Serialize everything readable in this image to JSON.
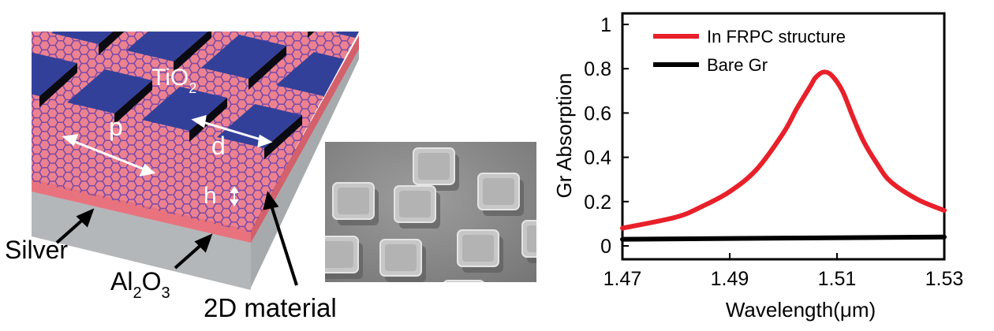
{
  "schematic": {
    "labels": {
      "tio2": "TiO",
      "tio2_sub": "2",
      "period": "p",
      "size": "d",
      "height": "h",
      "silver": "Silver",
      "al2o3_a": "Al",
      "al2o3_sub1": "2",
      "al2o3_o": "O",
      "al2o3_sub2": "3",
      "material": "2D material"
    },
    "colors": {
      "tio2": "#33409a",
      "tio2_shadow": "#0a0a12",
      "al2o3": "#e8737e",
      "silver": "#b4b7ba",
      "graphene": "#7c4aa8"
    }
  },
  "sem": {
    "colors": {
      "background": "#8f8f8f",
      "pillar": "#b9b9b9"
    }
  },
  "chart_data": {
    "type": "line",
    "xlabel": "Wavelength(μm)",
    "ylabel": "Gr Absorption",
    "xlim": [
      1.47,
      1.53
    ],
    "ylim": [
      0,
      1
    ],
    "xticks": [
      "1.47",
      "1.49",
      "1.51",
      "1.53"
    ],
    "yticks": [
      "0",
      "0.2",
      "0.4",
      "0.6",
      "0.8",
      "1"
    ],
    "legend_position": "top-left",
    "grid": false,
    "series": [
      {
        "name": "In FRPC structure",
        "color": "#e8202a",
        "x": [
          1.47,
          1.48,
          1.485,
          1.49,
          1.495,
          1.5,
          1.5025,
          1.505,
          1.506,
          1.5075,
          1.509,
          1.511,
          1.513,
          1.515,
          1.5175,
          1.52,
          1.525,
          1.53
        ],
        "y": [
          0.08,
          0.13,
          0.18,
          0.245,
          0.345,
          0.51,
          0.62,
          0.72,
          0.76,
          0.785,
          0.77,
          0.7,
          0.58,
          0.47,
          0.37,
          0.29,
          0.21,
          0.16
        ]
      },
      {
        "name": "Bare Gr",
        "color": "#000000",
        "x": [
          1.47,
          1.53
        ],
        "y": [
          0.03,
          0.04
        ]
      }
    ]
  }
}
